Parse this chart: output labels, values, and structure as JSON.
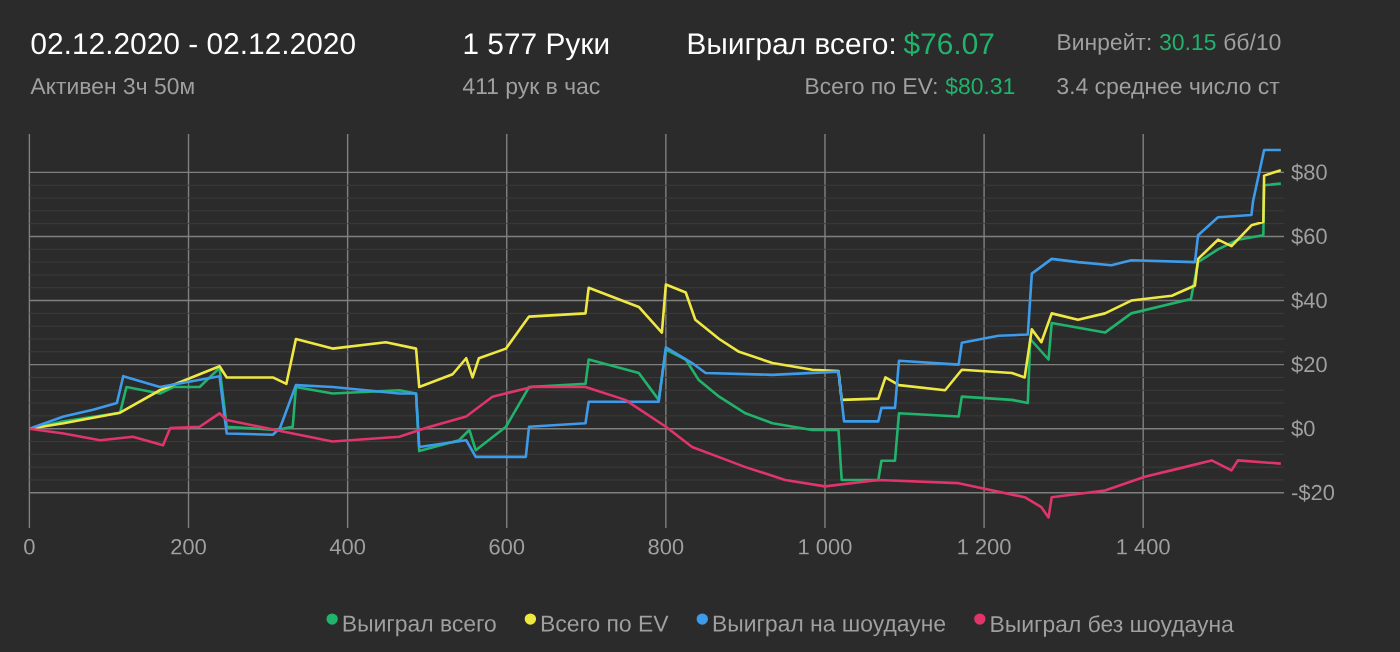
{
  "chart_data": {
    "type": "line",
    "title": "02.12.2020 - 02.12.2020",
    "subtitle": "Активен 3ч 50м",
    "annotations": [
      "1 577 Руки",
      "411 рук в час",
      "Выиграл всего:",
      "$76.07",
      "Всего по EV:",
      "$80.31",
      "Винрейт:",
      "30.15",
      "бб/10",
      "3.4 среднее число ст"
    ],
    "xlim": [
      0,
      1577
    ],
    "ylim": [
      -31,
      92
    ],
    "xticks": [
      0,
      200,
      400,
      600,
      800,
      {
        "value": 1000,
        "label": "1 000"
      },
      {
        "value": 1200,
        "label": "1 200"
      },
      {
        "value": 1400,
        "label": "1 400"
      }
    ],
    "yticks": [
      {
        "value": -20,
        "label": "-$20"
      },
      {
        "value": 0,
        "label": "$0"
      },
      {
        "value": 20,
        "label": "$20"
      },
      {
        "value": 40,
        "label": "$40"
      },
      {
        "value": 60,
        "label": "$60"
      },
      {
        "value": 80,
        "label": "$80"
      }
    ],
    "grid": true,
    "legend": "bottom",
    "series": [
      {
        "name": "Выиграл всего",
        "color": "#21b36b",
        "x": [
          0,
          43,
          114,
          122,
          164,
          181,
          214,
          239,
          248,
          310,
          331,
          335,
          381,
          465,
          486,
          490,
          540,
          553,
          561,
          599,
          628,
          699,
          703,
          766,
          791,
          800,
          825,
          841,
          867,
          900,
          934,
          984,
          1017,
          1021,
          1067,
          1071,
          1088,
          1093,
          1168,
          1172,
          1235,
          1255,
          1258,
          1281,
          1285,
          1352,
          1385,
          1460,
          1469,
          1494,
          1519,
          1551,
          1552,
          1573
        ],
        "values": [
          0,
          2.3,
          5,
          13,
          11,
          13,
          13,
          19,
          0.6,
          -0.4,
          0.6,
          13,
          11,
          12,
          11,
          -7,
          -3.6,
          -0.4,
          -6.7,
          0.6,
          13,
          14,
          21.6,
          17.4,
          9,
          24.7,
          21.6,
          15.3,
          10,
          4.8,
          1.7,
          -0.4,
          -0.4,
          -16,
          -16,
          -10,
          -10,
          4.8,
          3.8,
          10,
          9,
          8,
          28,
          21.6,
          33,
          30,
          36,
          40.5,
          52,
          56,
          59,
          60.4,
          76,
          76.5
        ]
      },
      {
        "name": "Всего по EV",
        "color": "#f0e842",
        "x": [
          0,
          43,
          114,
          164,
          239,
          248,
          306,
          323,
          335,
          381,
          448,
          486,
          490,
          532,
          549,
          557,
          565,
          599,
          628,
          699,
          703,
          766,
          795,
          800,
          825,
          837,
          867,
          892,
          934,
          984,
          1017,
          1021,
          1067,
          1076,
          1093,
          1151,
          1172,
          1235,
          1251,
          1260,
          1272,
          1285,
          1318,
          1352,
          1385,
          1436,
          1465,
          1469,
          1494,
          1511,
          1536,
          1551,
          1552,
          1573
        ],
        "values": [
          0,
          1.7,
          5,
          12,
          19.5,
          16,
          16,
          14,
          28,
          25,
          27,
          25,
          13,
          17,
          22,
          16,
          22,
          25,
          35,
          36,
          44,
          38,
          30,
          45,
          42.5,
          34,
          28,
          24,
          20.5,
          18.4,
          18,
          9,
          9.4,
          16,
          13.6,
          12,
          18.4,
          17.4,
          16,
          31,
          27,
          36,
          34,
          36,
          40,
          41.5,
          44.7,
          53,
          59,
          57,
          63.5,
          64.5,
          79,
          80.7
        ]
      },
      {
        "name": "Выиграл на шоудауне",
        "color": "#3d9be9",
        "x": [
          0,
          43,
          80,
          110,
          118,
          164,
          239,
          248,
          306,
          315,
          335,
          381,
          465,
          486,
          490,
          549,
          561,
          624,
          628,
          699,
          703,
          791,
          800,
          833,
          850,
          934,
          1017,
          1024,
          1067,
          1071,
          1088,
          1093,
          1168,
          1172,
          1218,
          1255,
          1260,
          1285,
          1318,
          1360,
          1385,
          1465,
          1469,
          1494,
          1536,
          1538,
          1552,
          1573
        ],
        "values": [
          0,
          3.8,
          5.9,
          8,
          16.4,
          13,
          16.4,
          -1.5,
          -1.9,
          0.2,
          13.6,
          13,
          11,
          11,
          -5.7,
          -3.6,
          -8.8,
          -8.8,
          0.6,
          1.7,
          8.4,
          8.4,
          25.4,
          20.5,
          17.4,
          16.8,
          17.8,
          2.3,
          2.3,
          6.5,
          6.5,
          21.2,
          20,
          26.8,
          29,
          29.4,
          48.4,
          53,
          52,
          51,
          52.6,
          52,
          60.4,
          66,
          66.7,
          70.9,
          87,
          87
        ]
      },
      {
        "name": "Выиграл без шоудауна",
        "color": "#e0356a",
        "x": [
          0,
          43,
          89,
          130,
          168,
          177,
          214,
          239,
          248,
          331,
          381,
          465,
          498,
          549,
          582,
          632,
          699,
          749,
          800,
          833,
          866,
          900,
          950,
          1000,
          1067,
          1168,
          1251,
          1272,
          1281,
          1285,
          1352,
          1402,
          1452,
          1486,
          1511,
          1519,
          1573
        ],
        "values": [
          0,
          -1.5,
          -3.6,
          -2.5,
          -5.2,
          0.2,
          0.6,
          4.8,
          2.7,
          -1.5,
          -4,
          -2.5,
          0.2,
          3.8,
          10,
          13,
          13,
          9,
          0.6,
          -5.7,
          -8.8,
          -12,
          -16,
          -18,
          -16,
          -17,
          -21.4,
          -24.5,
          -27.7,
          -21.4,
          -19.3,
          -15,
          -12,
          -9.9,
          -13,
          -9.9,
          -10.9
        ]
      }
    ]
  }
}
